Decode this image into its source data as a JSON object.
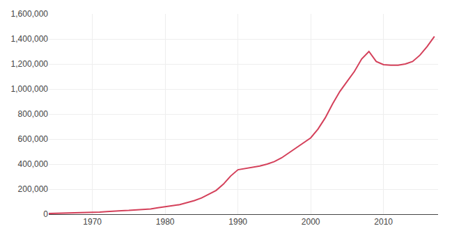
{
  "chart_data": {
    "type": "line",
    "x": [
      1964,
      1965,
      1966,
      1967,
      1968,
      1969,
      1970,
      1971,
      1972,
      1973,
      1974,
      1975,
      1976,
      1977,
      1978,
      1979,
      1980,
      1981,
      1982,
      1983,
      1984,
      1985,
      1986,
      1987,
      1988,
      1989,
      1990,
      1991,
      1992,
      1993,
      1994,
      1995,
      1996,
      1997,
      1998,
      1999,
      2000,
      2001,
      2002,
      2003,
      2004,
      2005,
      2006,
      2007,
      2008,
      2009,
      2010,
      2011,
      2012,
      2013,
      2014,
      2015,
      2016,
      2017
    ],
    "values": [
      5000,
      6000,
      7000,
      8000,
      9500,
      11000,
      13000,
      16000,
      21000,
      26000,
      28000,
      30000,
      33000,
      36000,
      42000,
      52000,
      62000,
      68000,
      76000,
      90000,
      108000,
      130000,
      158000,
      190000,
      240000,
      305000,
      355000,
      365000,
      375000,
      385000,
      400000,
      420000,
      450000,
      490000,
      530000,
      570000,
      610000,
      680000,
      770000,
      880000,
      980000,
      1060000,
      1140000,
      1240000,
      1300000,
      1220000,
      1195000,
      1190000,
      1190000,
      1200000,
      1220000,
      1270000,
      1340000,
      1420000
    ],
    "color": "#d4405a",
    "xlim": [
      1964,
      2017.5
    ],
    "xticks": [
      1970,
      1980,
      1990,
      2000,
      2010
    ],
    "ylim": [
      0,
      1600000
    ],
    "yticks": [
      0,
      {
        "value": 200000,
        "label": "200,000"
      },
      {
        "value": 400000,
        "label": "400,000"
      },
      {
        "value": 600000,
        "label": "600,000"
      },
      {
        "value": 800000,
        "label": "800,000"
      },
      {
        "value": 1000000,
        "label": "1,000,000"
      },
      {
        "value": 1200000,
        "label": "1,200,000"
      },
      {
        "value": 1400000,
        "label": "1,400,000"
      },
      {
        "value": 1600000,
        "label": "1,600,000"
      }
    ],
    "grid": true
  }
}
